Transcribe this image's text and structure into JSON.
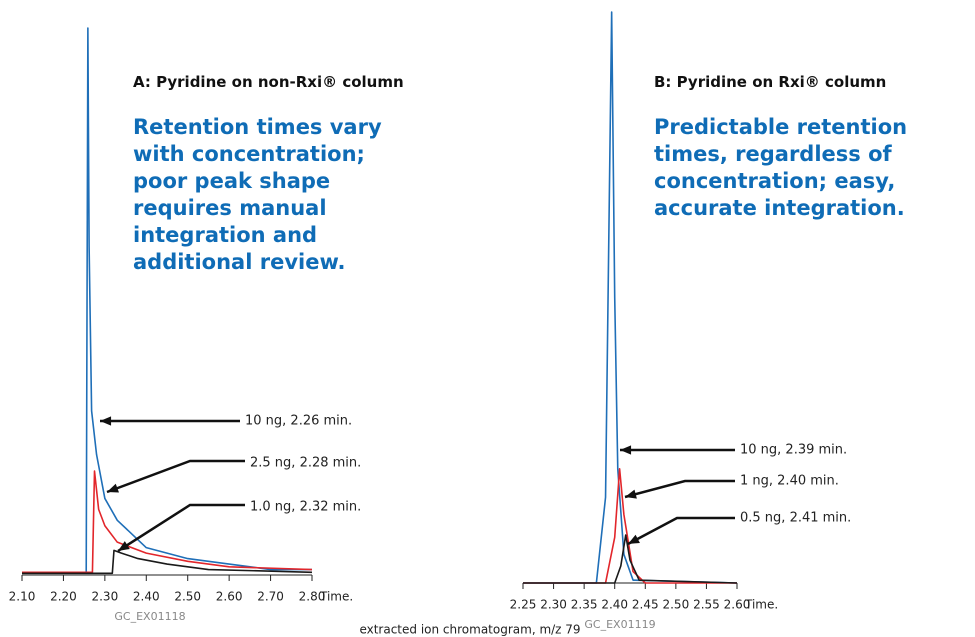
{
  "chart_data": [
    {
      "type": "line",
      "title": "A: Pyridine on non-Rxi® column",
      "subtitle": "Retention times vary with concentration; poor peak shape requires manual integration and additional review.",
      "xlabel": "Time.",
      "code": "GC_EX01118",
      "xlim": [
        2.1,
        2.8
      ],
      "xticks": [
        {
          "value": 2.1,
          "label": "2.10"
        },
        {
          "value": 2.2,
          "label": "2.20"
        },
        {
          "value": 2.3,
          "label": "2.30"
        },
        {
          "value": 2.4,
          "label": "2.40"
        },
        {
          "value": 2.5,
          "label": "2.50"
        },
        {
          "value": 2.6,
          "label": "2.60"
        },
        {
          "value": 2.7,
          "label": "2.70"
        },
        {
          "value": 2.8,
          "label": "2.80"
        }
      ],
      "ylim": [
        0,
        100
      ],
      "annotations": [
        "10 ng, 2.26 min.",
        "2.5 ng, 2.28 min.",
        "1.0 ng, 2.32 min."
      ],
      "series": [
        {
          "color": "#1f6fb8",
          "x": [
            2.1,
            2.25,
            2.255,
            2.259,
            2.262,
            2.268,
            2.28,
            2.3,
            2.33,
            2.4,
            2.5,
            2.6,
            2.7,
            2.8
          ],
          "values": [
            0.5,
            0.5,
            0.5,
            100,
            60,
            30,
            22,
            14,
            10,
            5,
            3,
            2,
            1,
            1
          ]
        },
        {
          "color": "#e2262b",
          "x": [
            2.1,
            2.27,
            2.275,
            2.285,
            2.3,
            2.33,
            2.4,
            2.5,
            2.6,
            2.8
          ],
          "values": [
            0.5,
            0.5,
            19,
            12,
            9,
            6,
            4,
            2.5,
            1.5,
            1
          ]
        },
        {
          "color": "#1a1a1a",
          "x": [
            2.1,
            2.318,
            2.322,
            2.34,
            2.38,
            2.45,
            2.55,
            2.8
          ],
          "values": [
            0.3,
            0.3,
            4.5,
            4,
            3,
            2,
            1,
            0.5
          ]
        }
      ]
    },
    {
      "type": "line",
      "title": "B: Pyridine on Rxi® column",
      "subtitle": "Predictable retention times, regardless of concentration; easy, accurate integration.",
      "xlabel": "Time.",
      "code": "GC_EX01119",
      "xlim": [
        2.25,
        2.6
      ],
      "xticks": [
        2.25,
        {
          "value": 2.3,
          "label": "2.30"
        },
        2.35,
        {
          "value": 2.4,
          "label": "2.40"
        },
        2.45,
        {
          "value": 2.5,
          "label": "2.50"
        },
        2.55,
        {
          "value": 2.6,
          "label": "2.60"
        }
      ],
      "ylim": [
        0,
        100
      ],
      "annotations": [
        "10 ng, 2.39 min.",
        "1 ng, 2.40 min.",
        "0.5 ng, 2.41 min."
      ],
      "series": [
        {
          "color": "#1f6fb8",
          "x": [
            2.25,
            2.37,
            2.385,
            2.395,
            2.4,
            2.405,
            2.415,
            2.43,
            2.6
          ],
          "values": [
            0,
            0,
            15,
            100,
            50,
            20,
            5,
            0.5,
            0
          ]
        },
        {
          "color": "#e2262b",
          "x": [
            2.25,
            2.385,
            2.4,
            2.408,
            2.415,
            2.43,
            2.45,
            2.6
          ],
          "values": [
            0,
            0,
            8,
            20,
            12,
            2,
            0,
            0
          ]
        },
        {
          "color": "#1a1a1a",
          "x": [
            2.25,
            2.4,
            2.41,
            2.418,
            2.425,
            2.44,
            2.6
          ],
          "values": [
            0,
            0,
            3,
            8.4,
            4,
            0.5,
            0
          ]
        }
      ]
    }
  ],
  "caption": "extracted ion chromatogram, m/z 79"
}
